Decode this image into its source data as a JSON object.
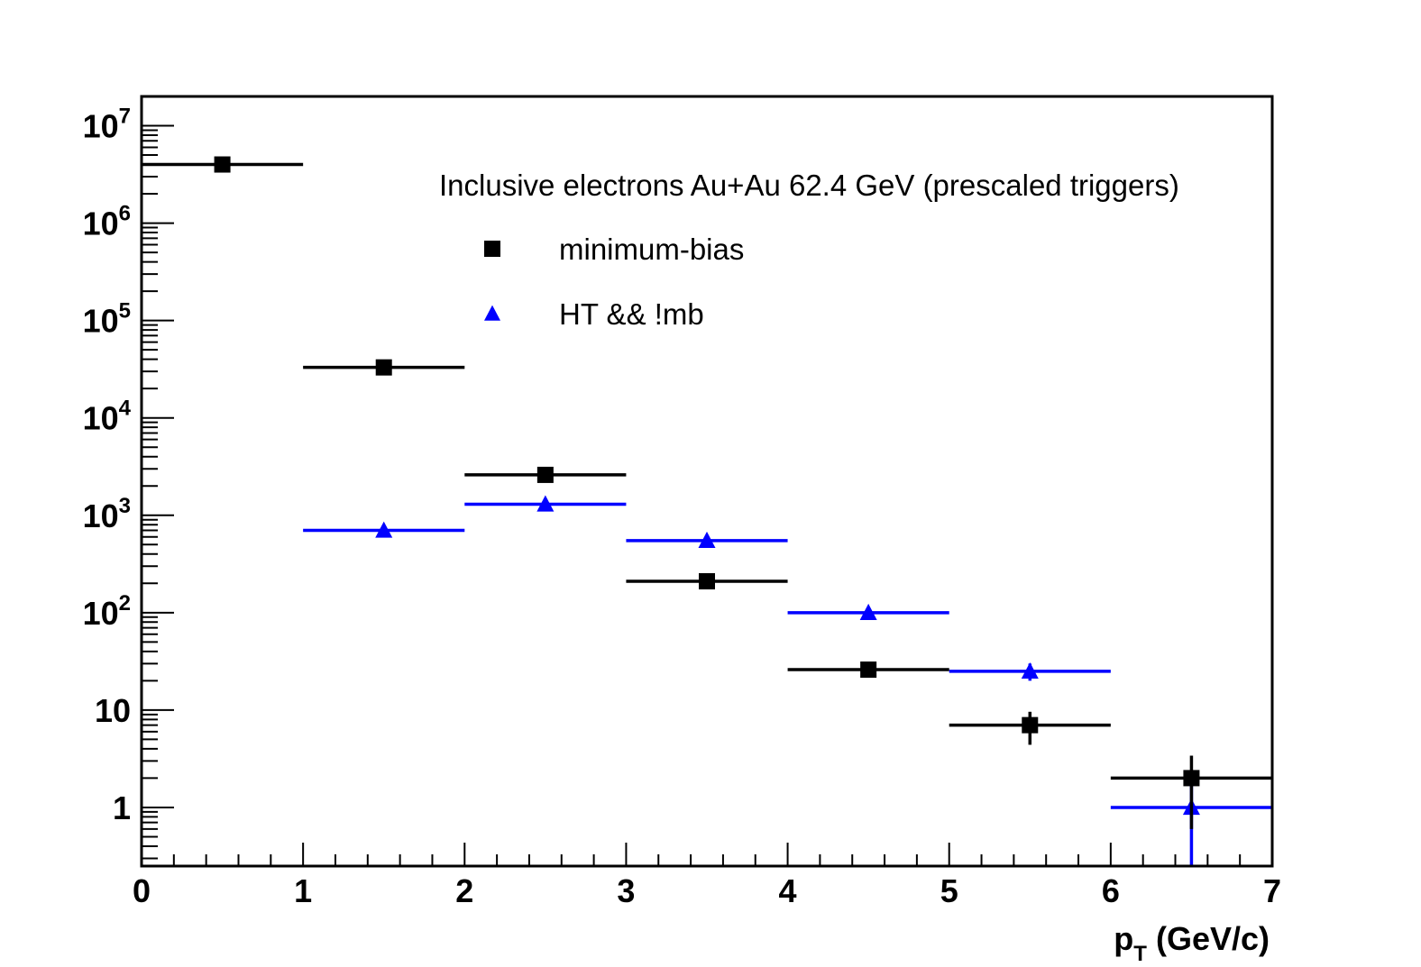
{
  "chart_data": {
    "type": "scatter",
    "title": "Inclusive electrons Au+Au 62.4 GeV (prescaled triggers)",
    "xlabel": {
      "main": "p",
      "sub": "T",
      "rest": " (GeV/c)"
    },
    "ylabel": "",
    "xlim": [
      0,
      7
    ],
    "ylim": [
      0.25,
      20000000
    ],
    "yscale": "log",
    "grid": false,
    "legend_position": "top-right",
    "x_ticks": [
      "0",
      "1",
      "2",
      "3",
      "4",
      "5",
      "6",
      "7"
    ],
    "y_ticks": [
      {
        "value": 1,
        "base": "1",
        "exp": ""
      },
      {
        "value": 10,
        "base": "10",
        "exp": ""
      },
      {
        "value": 100,
        "base": "10",
        "exp": "2"
      },
      {
        "value": 1000,
        "base": "10",
        "exp": "3"
      },
      {
        "value": 10000,
        "base": "10",
        "exp": "4"
      },
      {
        "value": 100000,
        "base": "10",
        "exp": "5"
      },
      {
        "value": 1000000,
        "base": "10",
        "exp": "6"
      },
      {
        "value": 10000000,
        "base": "10",
        "exp": "7"
      }
    ],
    "series": [
      {
        "name": "minimum-bias",
        "color": "#000000",
        "marker": "square",
        "points": [
          {
            "x": 0.5,
            "xerr": 0.5,
            "y": 4000000,
            "ylow": 4000000,
            "yhigh": 4000000
          },
          {
            "x": 1.5,
            "xerr": 0.5,
            "y": 33000,
            "ylow": 33000,
            "yhigh": 33000
          },
          {
            "x": 2.5,
            "xerr": 0.5,
            "y": 2600,
            "ylow": 2600,
            "yhigh": 2600
          },
          {
            "x": 3.5,
            "xerr": 0.5,
            "y": 210,
            "ylow": 210,
            "yhigh": 210
          },
          {
            "x": 4.5,
            "xerr": 0.5,
            "y": 26,
            "ylow": 22,
            "yhigh": 30
          },
          {
            "x": 5.5,
            "xerr": 0.5,
            "y": 7,
            "ylow": 4.4,
            "yhigh": 9.6
          },
          {
            "x": 6.5,
            "xerr": 0.5,
            "y": 2,
            "ylow": 0.6,
            "yhigh": 3.4
          }
        ]
      },
      {
        "name": "HT && !mb",
        "color": "#0000ff",
        "marker": "triangle",
        "points": [
          {
            "x": 1.5,
            "xerr": 0.5,
            "y": 700,
            "ylow": 700,
            "yhigh": 700
          },
          {
            "x": 2.5,
            "xerr": 0.5,
            "y": 1300,
            "ylow": 1300,
            "yhigh": 1300
          },
          {
            "x": 3.5,
            "xerr": 0.5,
            "y": 550,
            "ylow": 550,
            "yhigh": 550
          },
          {
            "x": 4.5,
            "xerr": 0.5,
            "y": 100,
            "ylow": 90,
            "yhigh": 110
          },
          {
            "x": 5.5,
            "xerr": 0.5,
            "y": 25,
            "ylow": 20,
            "yhigh": 30
          },
          {
            "x": 6.5,
            "xerr": 0.5,
            "y": 1,
            "ylow": 0.25,
            "yhigh": 2
          }
        ]
      }
    ]
  }
}
